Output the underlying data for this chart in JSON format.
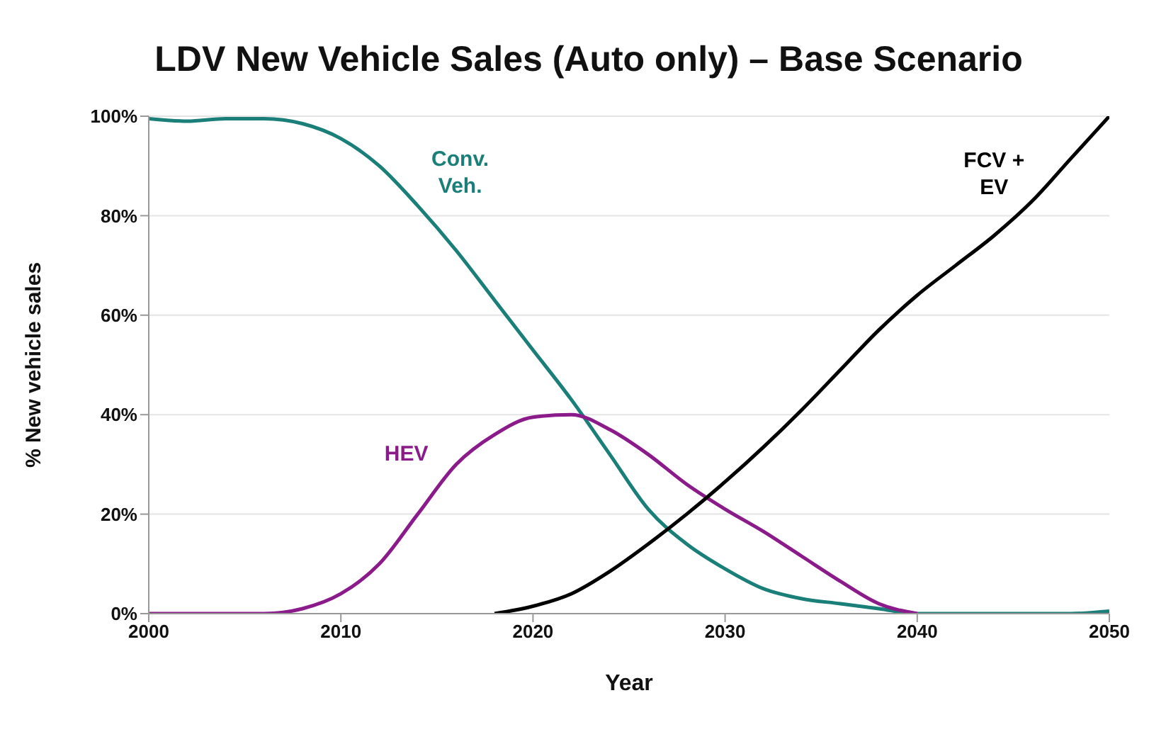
{
  "chart_data": {
    "type": "line",
    "title": "LDV New Vehicle Sales (Auto only) – Base Scenario",
    "xlabel": "Year",
    "ylabel": "% New vehicle sales",
    "x": [
      2000,
      2002,
      2004,
      2006,
      2008,
      2010,
      2012,
      2014,
      2016,
      2018,
      2020,
      2022,
      2024,
      2026,
      2028,
      2030,
      2032,
      2034,
      2036,
      2038,
      2040,
      2042,
      2044,
      2046,
      2048,
      2050
    ],
    "series": [
      {
        "name": "Conv. Veh.",
        "color": "#1a7f78",
        "values": [
          99.5,
          99,
          99.5,
          99.5,
          98.5,
          95.5,
          90,
          82,
          73,
          63,
          53,
          43,
          32,
          21,
          14,
          9,
          5,
          3,
          2,
          1,
          0,
          0,
          0,
          0,
          0,
          0.5
        ]
      },
      {
        "name": "HEV",
        "color": "#8b1a8b",
        "values": [
          0,
          0,
          0,
          0,
          1,
          4,
          10,
          20,
          30,
          36,
          39.5,
          40,
          37,
          32,
          26,
          21,
          16.5,
          11.5,
          6.5,
          2,
          0,
          null,
          null,
          null,
          null,
          null
        ]
      },
      {
        "name": "FCV + EV",
        "color": "#000000",
        "values": [
          null,
          null,
          null,
          null,
          null,
          null,
          null,
          null,
          null,
          0,
          1.5,
          4,
          8.5,
          14,
          20,
          26.5,
          33.5,
          41,
          49,
          57,
          64,
          70,
          76,
          83,
          91.5,
          100
        ]
      }
    ],
    "xlim": [
      2000,
      2050
    ],
    "xticks": [
      2000,
      2010,
      2020,
      2030,
      2040,
      2050
    ],
    "ylim": [
      0,
      100
    ],
    "yticks": [
      {
        "value": 0,
        "label": "0%"
      },
      {
        "value": 20,
        "label": "20%"
      },
      {
        "value": 40,
        "label": "40%"
      },
      {
        "value": 60,
        "label": "60%"
      },
      {
        "value": 80,
        "label": "80%"
      },
      {
        "value": 100,
        "label": "100%"
      }
    ],
    "grid": "y",
    "legend": false,
    "marker": "none",
    "line_style": "solid"
  }
}
